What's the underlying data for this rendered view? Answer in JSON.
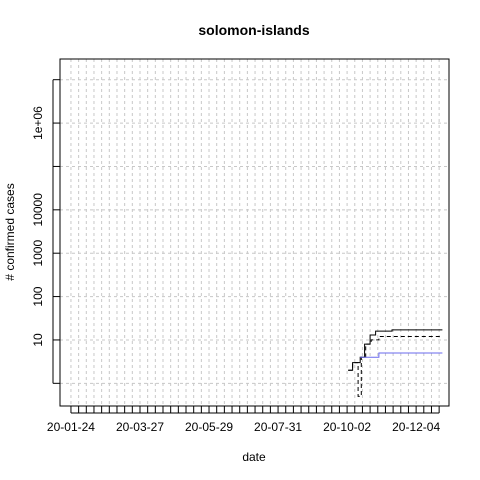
{
  "chart_data": {
    "type": "line",
    "title": "solomon-islands",
    "xlabel": "date",
    "ylabel": "# confirmed cases",
    "x_tick_labels": [
      "20-01-24",
      "20-03-27",
      "20-05-29",
      "20-07-31",
      "20-10-02",
      "20-12-04"
    ],
    "x_tick_dates": [
      "2020-01-24",
      "2020-03-27",
      "2020-05-29",
      "2020-07-31",
      "2020-10-02",
      "2020-12-04"
    ],
    "xlim": [
      "2020-01-14",
      "2021-01-03"
    ],
    "y_scale": "log",
    "ylim": [
      0.3,
      30000000
    ],
    "y_ticks": [
      10,
      100,
      1000,
      10000,
      1000000
    ],
    "y_tick_labels": [
      "10",
      "100",
      "1000",
      "10000",
      "1e+06"
    ],
    "grid": true,
    "series": [
      {
        "color": "#000000",
        "style": "solid",
        "points": [
          [
            "2020-10-03",
            2
          ],
          [
            "2020-10-07",
            3
          ],
          [
            "2020-10-14",
            4
          ],
          [
            "2020-10-18",
            8
          ],
          [
            "2020-10-23",
            13
          ],
          [
            "2020-10-28",
            16
          ],
          [
            "2020-11-12",
            17
          ],
          [
            "2020-12-28",
            17
          ]
        ]
      },
      {
        "color": "#000000",
        "style": "dashed",
        "points": [
          [
            "2020-10-03",
            2
          ],
          [
            "2020-10-07",
            3
          ],
          [
            "2020-10-12",
            0.5
          ],
          [
            "2020-10-15",
            4
          ],
          [
            "2020-10-19",
            8
          ],
          [
            "2020-10-24",
            10
          ],
          [
            "2020-10-31",
            12
          ],
          [
            "2020-12-28",
            12
          ]
        ]
      },
      {
        "color": "#6a6aee",
        "style": "solid",
        "points": [
          [
            "2020-10-14",
            4
          ],
          [
            "2020-10-31",
            5
          ],
          [
            "2020-12-28",
            5
          ]
        ]
      }
    ]
  }
}
